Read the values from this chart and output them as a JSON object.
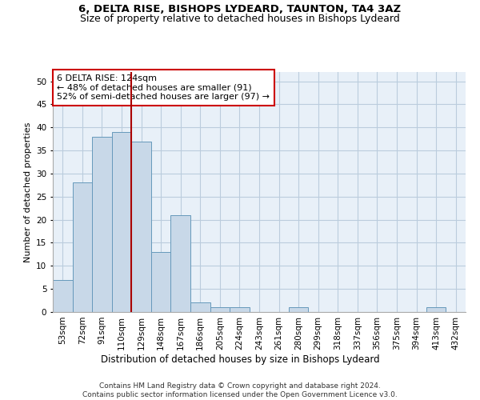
{
  "title_line1": "6, DELTA RISE, BISHOPS LYDEARD, TAUNTON, TA4 3AZ",
  "title_line2": "Size of property relative to detached houses in Bishops Lydeard",
  "xlabel": "Distribution of detached houses by size in Bishops Lydeard",
  "ylabel": "Number of detached properties",
  "categories": [
    "53sqm",
    "72sqm",
    "91sqm",
    "110sqm",
    "129sqm",
    "148sqm",
    "167sqm",
    "186sqm",
    "205sqm",
    "224sqm",
    "243sqm",
    "261sqm",
    "280sqm",
    "299sqm",
    "318sqm",
    "337sqm",
    "356sqm",
    "375sqm",
    "394sqm",
    "413sqm",
    "432sqm"
  ],
  "values": [
    7,
    28,
    38,
    39,
    37,
    13,
    21,
    2,
    1,
    1,
    0,
    0,
    1,
    0,
    0,
    0,
    0,
    0,
    0,
    1,
    0
  ],
  "bar_color": "#c8d8e8",
  "bar_edge_color": "#6699bb",
  "vline_color": "#aa0000",
  "annotation_text": "6 DELTA RISE: 124sqm\n← 48% of detached houses are smaller (91)\n52% of semi-detached houses are larger (97) →",
  "annotation_box_color": "#ffffff",
  "annotation_box_edge_color": "#cc0000",
  "ylim": [
    0,
    52
  ],
  "yticks": [
    0,
    5,
    10,
    15,
    20,
    25,
    30,
    35,
    40,
    45,
    50
  ],
  "grid_color": "#bbccdd",
  "bg_color": "#e8f0f8",
  "footnote": "Contains HM Land Registry data © Crown copyright and database right 2024.\nContains public sector information licensed under the Open Government Licence v3.0.",
  "title_fontsize": 9.5,
  "subtitle_fontsize": 9,
  "xlabel_fontsize": 8.5,
  "ylabel_fontsize": 8,
  "tick_fontsize": 7.5,
  "annot_fontsize": 8,
  "footnote_fontsize": 6.5
}
